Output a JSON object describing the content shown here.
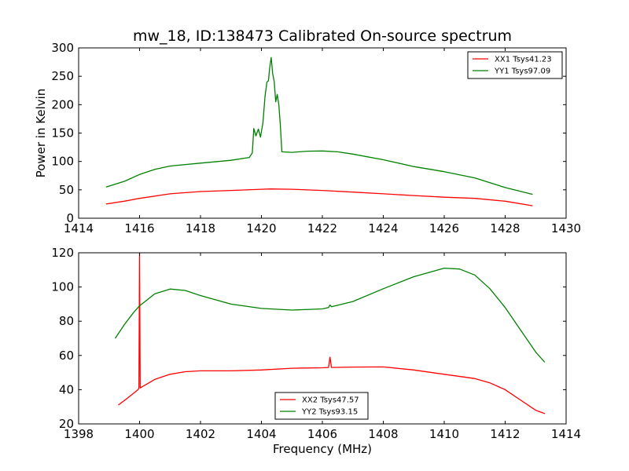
{
  "chart_data": [
    {
      "type": "line",
      "title": "mw_18, ID:138473 Calibrated On-source spectrum",
      "xlabel": "",
      "ylabel": "Power in Kelvin",
      "xlim": [
        1414,
        1430
      ],
      "ylim": [
        0,
        300
      ],
      "xticks": [
        "1414",
        "1416",
        "1418",
        "1420",
        "1422",
        "1424",
        "1426",
        "1428",
        "1430"
      ],
      "yticks": [
        "0",
        "50",
        "100",
        "150",
        "200",
        "250",
        "300"
      ],
      "grid": false,
      "legend_position": "top-right",
      "series": [
        {
          "name": "XX1 Tsys41.23",
          "color": "#ff0000",
          "points": [
            [
              1414.9,
              25
            ],
            [
              1415.5,
              30
            ],
            [
              1416.0,
              35
            ],
            [
              1417.0,
              43
            ],
            [
              1418.0,
              47
            ],
            [
              1419.0,
              49
            ],
            [
              1420.0,
              51
            ],
            [
              1420.3,
              51.5
            ],
            [
              1421.0,
              51
            ],
            [
              1422.0,
              49
            ],
            [
              1423.0,
              46
            ],
            [
              1424.0,
              43
            ],
            [
              1425.0,
              40
            ],
            [
              1426.0,
              37
            ],
            [
              1427.0,
              35
            ],
            [
              1428.0,
              30
            ],
            [
              1428.9,
              22
            ]
          ]
        },
        {
          "name": "YY1 Tsys97.09",
          "color": "#008000",
          "points": [
            [
              1414.9,
              55
            ],
            [
              1415.5,
              65
            ],
            [
              1416.0,
              77
            ],
            [
              1416.5,
              86
            ],
            [
              1417.0,
              92
            ],
            [
              1418.0,
              97
            ],
            [
              1419.0,
              102
            ],
            [
              1419.6,
              107
            ],
            [
              1419.7,
              115
            ],
            [
              1419.75,
              158
            ],
            [
              1419.82,
              145
            ],
            [
              1419.9,
              157
            ],
            [
              1419.97,
              143
            ],
            [
              1420.05,
              168
            ],
            [
              1420.12,
              215
            ],
            [
              1420.18,
              240
            ],
            [
              1420.23,
              242
            ],
            [
              1420.27,
              265
            ],
            [
              1420.32,
              283
            ],
            [
              1420.37,
              255
            ],
            [
              1420.42,
              240
            ],
            [
              1420.47,
              205
            ],
            [
              1420.52,
              218
            ],
            [
              1420.57,
              200
            ],
            [
              1420.62,
              165
            ],
            [
              1420.67,
              117
            ],
            [
              1421.0,
              116
            ],
            [
              1421.5,
              118
            ],
            [
              1422.0,
              118.5
            ],
            [
              1422.5,
              117
            ],
            [
              1423.0,
              113
            ],
            [
              1424.0,
              103
            ],
            [
              1425.0,
              91
            ],
            [
              1426.0,
              82
            ],
            [
              1427.0,
              71
            ],
            [
              1428.0,
              54
            ],
            [
              1428.9,
              42
            ]
          ]
        }
      ]
    },
    {
      "type": "line",
      "title": "",
      "xlabel": "Frequency (MHz)",
      "ylabel": "",
      "xlim": [
        1398,
        1414
      ],
      "ylim": [
        20,
        120
      ],
      "xticks": [
        "1398",
        "1400",
        "1402",
        "1404",
        "1406",
        "1408",
        "1410",
        "1412",
        "1414"
      ],
      "yticks": [
        "20",
        "40",
        "60",
        "80",
        "100",
        "120"
      ],
      "grid": false,
      "legend_position": "bottom-center",
      "series": [
        {
          "name": "XX2 Tsys47.57",
          "color": "#ff0000",
          "points": [
            [
              1399.3,
              31
            ],
            [
              1399.6,
              35
            ],
            [
              1399.95,
              40
            ],
            [
              1399.98,
              41
            ],
            [
              1400.0,
              120
            ],
            [
              1400.02,
              41
            ],
            [
              1400.5,
              46
            ],
            [
              1401.0,
              49
            ],
            [
              1401.5,
              50.5
            ],
            [
              1402.0,
              51
            ],
            [
              1403.0,
              51
            ],
            [
              1404.0,
              51.5
            ],
            [
              1405.0,
              52.5
            ],
            [
              1406.0,
              52.8
            ],
            [
              1406.2,
              53
            ],
            [
              1406.25,
              59
            ],
            [
              1406.3,
              53
            ],
            [
              1407.0,
              53.2
            ],
            [
              1408.0,
              53.3
            ],
            [
              1409.0,
              51.5
            ],
            [
              1410.0,
              49
            ],
            [
              1411.0,
              46.5
            ],
            [
              1411.5,
              44
            ],
            [
              1412.0,
              40
            ],
            [
              1412.5,
              34
            ],
            [
              1413.0,
              28
            ],
            [
              1413.3,
              26
            ]
          ]
        },
        {
          "name": "YY2 Tsys93.15",
          "color": "#008000",
          "points": [
            [
              1399.2,
              70
            ],
            [
              1399.5,
              78
            ],
            [
              1399.8,
              85
            ],
            [
              1400.0,
              89
            ],
            [
              1400.5,
              96
            ],
            [
              1401.0,
              98.8
            ],
            [
              1401.5,
              98
            ],
            [
              1402.0,
              95
            ],
            [
              1403.0,
              90
            ],
            [
              1404.0,
              87.5
            ],
            [
              1405.0,
              86.5
            ],
            [
              1406.0,
              87.2
            ],
            [
              1406.2,
              88
            ],
            [
              1406.25,
              89.5
            ],
            [
              1406.3,
              88.5
            ],
            [
              1407.0,
              91.5
            ],
            [
              1408.0,
              99
            ],
            [
              1409.0,
              106
            ],
            [
              1410.0,
              111
            ],
            [
              1410.5,
              110.5
            ],
            [
              1411.0,
              107
            ],
            [
              1411.5,
              99
            ],
            [
              1412.0,
              88
            ],
            [
              1412.5,
              75
            ],
            [
              1413.0,
              62
            ],
            [
              1413.3,
              56
            ]
          ]
        }
      ]
    }
  ]
}
